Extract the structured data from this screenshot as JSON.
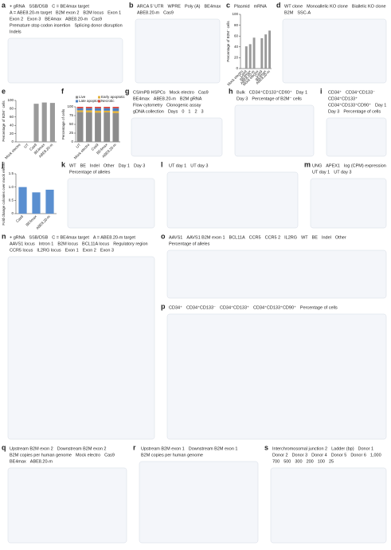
{
  "panels": [
    {
      "letter": "a",
      "texts": [
        "+ gRNA",
        "SSB/DSB",
        "C = BE4max target",
        "A = ABE8.20-m target",
        "B2M exon 2",
        "B2M locus",
        "Exon 1",
        "Exon 2",
        "Exon 3",
        "BE4max",
        "ABE8.20-m",
        "Cas9",
        "Premature stop codon insertion",
        "Splicing donor disruption",
        "Indels"
      ]
    },
    {
      "letter": "b",
      "texts": [
        "ARCA 5' UTR",
        "WPRE",
        "Poly (A)",
        "BE4max",
        "ABE8.20-m",
        "Cas9"
      ]
    },
    {
      "letter": "c",
      "texts": [
        "Plasmid",
        "mRNA"
      ],
      "chart": {
        "type": "bar",
        "y_label": "Percentage of B2M⁻ cells",
        "categories": [
          "Mock electro",
          "Cas9",
          "BE4max",
          "ABE8.20-m",
          "Mock electro",
          "Cas9",
          "BE4max",
          "ABE8.20-m"
        ],
        "series": [
          {
            "color": "#9a9a9a",
            "values": [
              0,
              41,
              45,
              57,
              0,
              56,
              63,
              70
            ]
          }
        ],
        "ylim": [
          0,
          100
        ],
        "yticks": [
          0,
          20,
          40,
          60,
          80,
          100
        ]
      }
    },
    {
      "letter": "d",
      "texts": [
        "WT clone",
        "Monoallelic KO clone",
        "Biallelic KO clone",
        "B2M",
        "SSC-A"
      ]
    },
    {
      "letter": "e",
      "texts": [],
      "chart": {
        "type": "bar",
        "y_label": "Percentage of B2M⁻ cells",
        "categories": [
          "Mock electro",
          "UT",
          "Cas9",
          "BE4max",
          "ABE8.20-m"
        ],
        "series": [
          {
            "color": "#9a9a9a",
            "values": [
              1,
              1,
              92,
              95,
              94
            ]
          }
        ],
        "ylim": [
          0,
          100
        ],
        "yticks": [
          0,
          20,
          40,
          60,
          80,
          100
        ]
      }
    },
    {
      "letter": "f",
      "texts": [],
      "chart": {
        "type": "stacked_bar",
        "y_label": "Percentage of cells",
        "categories": [
          "UT",
          "Mock electro",
          "Cas9",
          "BE4max",
          "ABE8.20-m"
        ],
        "series": [
          {
            "name": "Live",
            "color": "#8c8c8c",
            "values": [
              85,
              84,
              83,
              84,
              82
            ]
          },
          {
            "name": "Early apoptotic",
            "color": "#e3b23c",
            "values": [
              5,
              6,
              6,
              5,
              6
            ]
          },
          {
            "name": "Late apoptotic",
            "color": "#4a7fc1",
            "values": [
              6,
              6,
              7,
              7,
              8
            ]
          },
          {
            "name": "Necrotic",
            "color": "#d9433a",
            "values": [
              4,
              4,
              4,
              4,
              4
            ]
          }
        ],
        "ylim": [
          0,
          100
        ],
        "yticks": [
          0,
          25,
          50,
          75,
          100
        ]
      }
    },
    {
      "letter": "g",
      "texts": [
        "CS/mPB HSPCs",
        "Mock electro",
        "Cas9",
        "BE4max",
        "ABE8.20-m",
        "B2M gRNA",
        "Flow cytometry",
        "Clonogenic assay",
        "gDNA collection",
        "Days",
        "0",
        "1",
        "2",
        "3"
      ]
    },
    {
      "letter": "h",
      "texts": [
        "Bulk",
        "CD34⁺CD133⁺CD90⁺",
        "Day 1",
        "Day 3",
        "Percentage of B2M⁻ cells"
      ]
    },
    {
      "letter": "i",
      "texts": [
        "CD34⁺",
        "CD34⁺CD133⁻",
        "CD34⁺CD133⁺",
        "CD34⁺CD133⁺CD90⁺",
        "Day 1",
        "Day 3",
        "Percentage of cells"
      ]
    },
    {
      "letter": "j",
      "texts": [],
      "chart": {
        "type": "bar",
        "y_label": "Fold change colonies over mock electro",
        "categories": [
          "Cas9",
          "BE4max",
          "ABE8.20-m"
        ],
        "series": [
          {
            "color": "#5a8fd0",
            "values": [
              1.0,
              0.8,
              0.9
            ]
          }
        ],
        "ylim": [
          0,
          1.5
        ],
        "yticks": [
          0,
          0.5,
          {
            "value": 1,
            "label": "1.0"
          },
          1.5
        ]
      }
    },
    {
      "letter": "k",
      "texts": [
        "WT",
        "BE",
        "Indel",
        "Other",
        "Day 1",
        "Day 3",
        "Percentage of alleles"
      ]
    },
    {
      "letter": "l",
      "texts": [
        "UT day 1",
        "UT day 3"
      ]
    },
    {
      "letter": "m",
      "texts": [
        "UNG",
        "APEX1",
        "log (CPM) expression",
        "UT day 1",
        "UT day 3"
      ]
    },
    {
      "letter": "n",
      "texts": [
        "+ gRNA",
        "SSB/DSB",
        "C = BE4max target",
        "A = ABE8.20-m target",
        "AAVS1 locus",
        "Intron 1",
        "B2M locus",
        "BCL11A locus",
        "Regulatory region",
        "CCR5 locus",
        "IL2RG locus",
        "Exon 1",
        "Exon 2",
        "Exon 3"
      ]
    },
    {
      "letter": "o",
      "texts": [
        "AAVS1",
        "AAVS1 B2M exon 1",
        "BCL11A",
        "CCR5",
        "CCR5 2",
        "IL2RG",
        "WT",
        "BE",
        "Indel",
        "Other",
        "Percentage of alleles"
      ]
    },
    {
      "letter": "p",
      "texts": [
        "CD34⁺",
        "CD34⁺CD133⁻",
        "CD34⁺CD133⁺",
        "CD34⁺CD133⁺CD90⁺",
        "Percentage of cells"
      ]
    },
    {
      "letter": "q",
      "texts": [
        "Upstream B2M exon 2",
        "Downstream B2M exon 2",
        "B2M copies per human genome",
        "Mock electro",
        "Cas9",
        "BE4max",
        "ABE8.20-m"
      ]
    },
    {
      "letter": "r",
      "texts": [
        "Upstream B2M exon 1",
        "Downstream B2M exon 1",
        "B2M copies per human genome"
      ]
    },
    {
      "letter": "s",
      "texts": [
        "Interchromosomal junction 2",
        "Ladder (bp)",
        "Donor 1",
        "Donor 2",
        "Donor 3",
        "Donor 4",
        "Donor 5",
        "Donor 6",
        "1,000",
        "700",
        "500",
        "300",
        "200",
        "100",
        "25"
      ]
    }
  ]
}
